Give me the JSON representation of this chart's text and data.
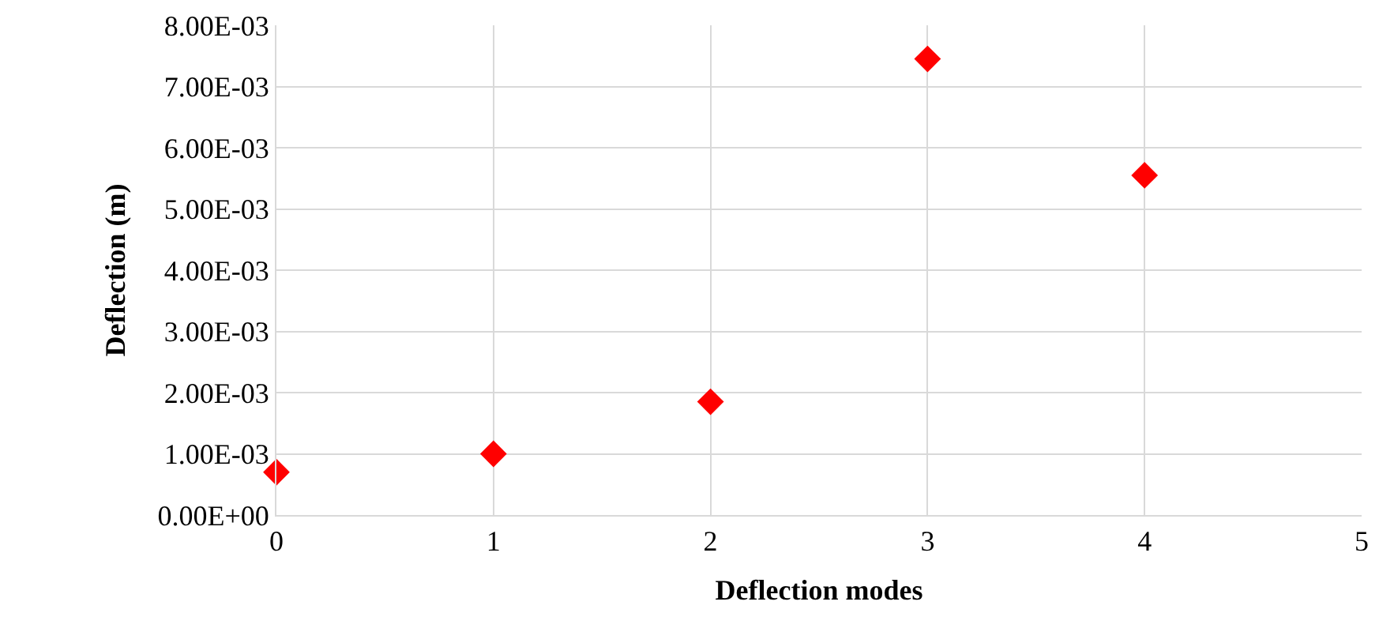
{
  "chart_data": {
    "type": "scatter",
    "xlabel": "Deflection modes",
    "ylabel": "Deflection (m)",
    "x": [
      0,
      1,
      2,
      3,
      4
    ],
    "series": [
      {
        "color": "#ff0000",
        "values": [
          0.0007,
          0.001,
          0.00185,
          0.00745,
          0.00555
        ]
      }
    ],
    "xlim": [
      0,
      5
    ],
    "xticks": [
      0,
      1,
      2,
      3,
      4,
      5
    ],
    "ylim": [
      0,
      0.008
    ],
    "yticks": [
      {
        "value": 0,
        "label": "0.00E+00"
      },
      {
        "value": 0.001,
        "label": "1.00E-03"
      },
      {
        "value": 0.002,
        "label": "2.00E-03"
      },
      {
        "value": 0.003,
        "label": "3.00E-03"
      },
      {
        "value": 0.004,
        "label": "4.00E-03"
      },
      {
        "value": 0.005,
        "label": "5.00E-03"
      },
      {
        "value": 0.006,
        "label": "6.00E-03"
      },
      {
        "value": 0.007,
        "label": "7.00E-03"
      },
      {
        "value": 0.008,
        "label": "8.00E-03"
      }
    ],
    "grid": true,
    "marker": "diamond",
    "legend": false
  }
}
